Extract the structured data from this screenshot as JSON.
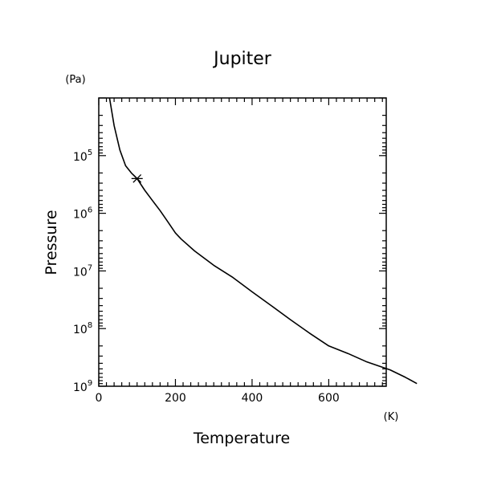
{
  "chart_data": {
    "type": "line",
    "title": "Jupiter",
    "xlabel": "Temperature",
    "ylabel": "Pressure",
    "x_unit": "(K)",
    "y_unit": "(Pa)",
    "x_scale": "linear",
    "y_scale": "log",
    "y_inverted": true,
    "xlim": [
      0,
      750
    ],
    "ylim": [
      1000000000,
      10000
    ],
    "x_ticks": [
      0,
      200,
      400,
      600
    ],
    "x_tick_labels": [
      "0",
      "200",
      "400",
      "600"
    ],
    "y_ticks": [
      100000,
      1000000,
      10000000,
      100000000,
      1000000000
    ],
    "y_tick_labels": [
      {
        "base": "10",
        "exp": "5"
      },
      {
        "base": "10",
        "exp": "6"
      },
      {
        "base": "10",
        "exp": "7"
      },
      {
        "base": "10",
        "exp": "8"
      },
      {
        "base": "10",
        "exp": "9"
      }
    ],
    "grid": false,
    "series": [
      {
        "color": "#000000",
        "points": [
          [
            28,
            10000
          ],
          [
            40,
            30000
          ],
          [
            55,
            80000
          ],
          [
            70,
            150000
          ],
          [
            85,
            200000
          ],
          [
            100,
            250000
          ],
          [
            120,
            400000
          ],
          [
            140,
            600000
          ],
          [
            160,
            900000
          ],
          [
            180,
            1400000
          ],
          [
            200,
            2200000
          ],
          [
            215,
            2800000
          ],
          [
            250,
            4500000
          ],
          [
            300,
            8000000
          ],
          [
            350,
            13000000
          ],
          [
            400,
            23000000
          ],
          [
            450,
            40000000
          ],
          [
            500,
            70000000
          ],
          [
            550,
            120000000
          ],
          [
            600,
            200000000
          ],
          [
            650,
            270000000
          ],
          [
            700,
            380000000
          ],
          [
            760,
            520000000
          ],
          [
            800,
            700000000
          ],
          [
            830,
            900000000
          ]
        ]
      }
    ],
    "markers": [
      {
        "symbol": "asterisk",
        "x": 100,
        "y": 250000
      }
    ]
  }
}
